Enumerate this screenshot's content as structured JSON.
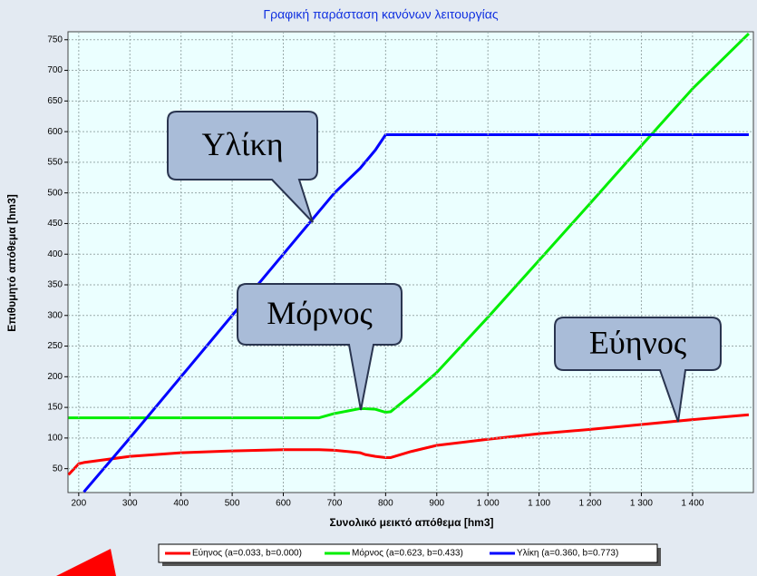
{
  "chart_data": {
    "type": "line",
    "title": "Γραφική παράσταση κανόνων λειτουργίας",
    "x_label": "Συνολικό μεικτό απόθεμα [hm3]",
    "y_label": "Επιθυμητό απόθεμα [hm3]",
    "x": [
      180,
      200,
      210,
      300,
      400,
      500,
      600,
      670,
      700,
      750,
      760,
      780,
      800,
      810,
      850,
      900,
      1000,
      1100,
      1200,
      1300,
      1400,
      1510
    ],
    "series": [
      {
        "name": "Εύηνος (a=0.033, b=0.000)",
        "color": "#ff0000",
        "values": [
          40,
          58,
          60,
          70,
          76,
          79,
          81,
          81,
          80,
          76,
          73,
          70,
          68,
          68,
          78,
          88,
          98,
          107,
          114,
          122,
          130,
          138
        ]
      },
      {
        "name": "Μόρνος (a=0.623, b=0.433)",
        "color": "#00ee00",
        "values": [
          133,
          133,
          133,
          133,
          133,
          133,
          133,
          133,
          140,
          148,
          148,
          147,
          142,
          143,
          170,
          207,
          297,
          390,
          483,
          577,
          670,
          760
        ]
      },
      {
        "name": "Υλίκη (a=0.360, b=0.773)",
        "color": "#0000ff",
        "values": [
          null,
          null,
          12,
          100,
          200,
          300,
          400,
          470,
          500,
          540,
          550,
          570,
          595,
          595,
          595,
          595,
          595,
          595,
          595,
          595,
          595,
          595
        ]
      }
    ],
    "xlim": [
      179,
      1519
    ],
    "ylim": [
      11,
      763
    ],
    "xticks": [
      200,
      300,
      400,
      500,
      600,
      700,
      800,
      900,
      {
        "value": 1000,
        "label": "1 000"
      },
      {
        "value": 1100,
        "label": "1 100"
      },
      {
        "value": 1200,
        "label": "1 200"
      },
      {
        "value": 1300,
        "label": "1 300"
      },
      {
        "value": 1400,
        "label": "1 400"
      }
    ],
    "yticks": [
      50,
      100,
      150,
      200,
      250,
      300,
      350,
      400,
      450,
      500,
      550,
      600,
      650,
      700,
      750
    ],
    "grid": true,
    "legend": "bottom",
    "annotations": [
      {
        "text": "Υλίκη"
      },
      {
        "text": "Μόρνος"
      },
      {
        "text": "Εύηνος"
      }
    ]
  }
}
